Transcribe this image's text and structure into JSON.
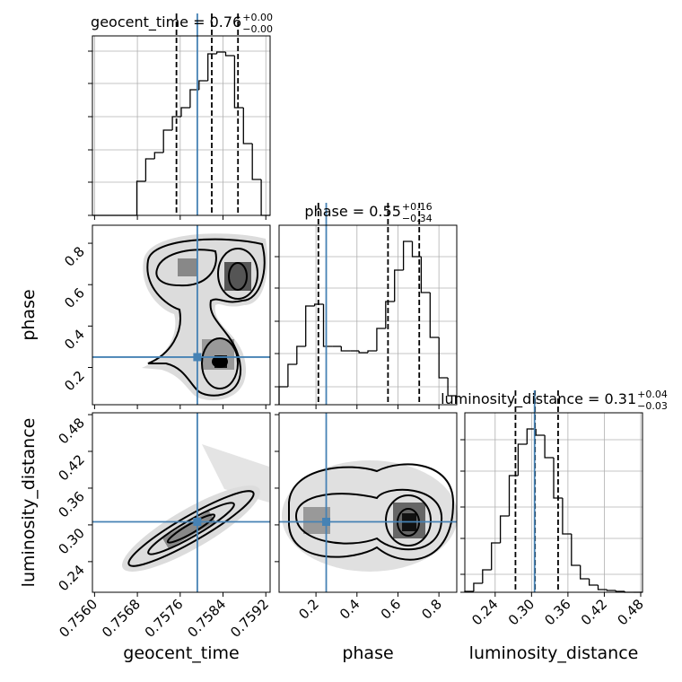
{
  "chart_data": [
    {
      "type": "histogram",
      "title": "geocent_time = 0.76",
      "title_sup": "+0.00",
      "title_sub": "−0.00",
      "bins": [
        0.75596,
        0.756126,
        0.756292,
        0.756458,
        0.756624,
        0.75679,
        0.756956,
        0.757122,
        0.757288,
        0.757454,
        0.75762,
        0.757786,
        0.757952,
        0.758118,
        0.758284,
        0.75845,
        0.758616,
        0.758782,
        0.758948,
        0.759114,
        0.75928
      ],
      "counts": [
        0,
        0,
        0,
        0,
        0,
        38,
        63,
        70,
        95,
        110,
        120,
        140,
        150,
        180,
        182,
        178,
        120,
        80,
        40,
        0
      ],
      "xlim": [
        0.75596,
        0.75928
      ],
      "xticks": [
        0.756,
        0.7568,
        0.7576,
        0.7584,
        0.7592
      ],
      "x_tick_labels": false,
      "ylim": [
        0,
        200
      ],
      "yticks": [
        0,
        37,
        73,
        110,
        147,
        183
      ],
      "y_tick_labels": false,
      "quantiles": [
        0.75753,
        0.75819,
        0.75868
      ],
      "truth": 0.75792,
      "grid": true,
      "color": "#000000",
      "truth_color": "#4682b4"
    },
    {
      "type": "density",
      "xlim": [
        0.75596,
        0.75928
      ],
      "xticks": [
        0.756,
        0.7568,
        0.7576,
        0.7584,
        0.7592
      ],
      "x_tick_labels": false,
      "ylim": [
        0.02,
        0.887
      ],
      "yticks": [
        0.2,
        0.4,
        0.6,
        0.8
      ],
      "y_tick_labels": true,
      "ylabel": "phase",
      "truth_x": 0.75792,
      "truth_y": 0.25,
      "truth_color": "#4682b4"
    },
    {
      "type": "histogram",
      "title": "phase = 0.55",
      "title_sup": "+0.16",
      "title_sub": "−0.34",
      "bins": [
        0.02,
        0.06335,
        0.1067,
        0.15005,
        0.1934,
        0.23675,
        0.2801,
        0.32345,
        0.3668,
        0.41015,
        0.4535,
        0.49685,
        0.5402,
        0.58355,
        0.6269,
        0.67025,
        0.7136,
        0.75695,
        0.8003,
        0.84365,
        0.887
      ],
      "counts": [
        20,
        45,
        65,
        110,
        112,
        65,
        65,
        60,
        60,
        58,
        60,
        85,
        115,
        150,
        182,
        165,
        125,
        75,
        30,
        10
      ],
      "xlim": [
        0.02,
        0.887
      ],
      "xticks": [
        0.2,
        0.4,
        0.6,
        0.8
      ],
      "x_tick_labels": false,
      "ylim": [
        0,
        200
      ],
      "yticks": [
        0,
        20,
        57,
        93,
        130,
        165
      ],
      "y_tick_labels": false,
      "quantiles": [
        0.2117,
        0.5515,
        0.704
      ],
      "truth": 0.25,
      "grid": true,
      "color": "#000000",
      "truth_color": "#4682b4"
    },
    {
      "type": "density",
      "xlim": [
        0.75596,
        0.75928
      ],
      "xticks": [
        {
          "value": 0.756,
          "label": "0.7560"
        },
        {
          "value": 0.7568,
          "label": "0.7568"
        },
        {
          "value": 0.7576,
          "label": "0.7576"
        },
        {
          "value": 0.7584,
          "label": "0.7584"
        },
        {
          "value": 0.7592,
          "label": "0.7592"
        }
      ],
      "x_tick_labels": true,
      "ylim": [
        0.19,
        0.483
      ],
      "yticks": [
        0.24,
        {
          "value": 0.3,
          "label": "0.30"
        },
        0.36,
        0.42,
        0.48
      ],
      "y_tick_labels": true,
      "xlabel": "geocent_time",
      "ylabel": "luminosity_distance",
      "truth_x": 0.75792,
      "truth_y": 0.305,
      "truth_color": "#4682b4"
    },
    {
      "type": "density",
      "xlim": [
        0.02,
        0.887
      ],
      "xticks": [
        0.2,
        0.4,
        0.6,
        0.8
      ],
      "x_tick_labels": true,
      "ylim": [
        0.19,
        0.483
      ],
      "yticks": [
        0.24,
        0.3,
        0.36,
        0.42,
        0.48
      ],
      "y_tick_labels": false,
      "xlabel": "phase",
      "truth_x": 0.25,
      "truth_y": 0.305,
      "truth_color": "#4682b4"
    },
    {
      "type": "histogram",
      "title": "luminosity_distance = 0.31",
      "title_sup": "+0.04",
      "title_sub": "−0.03",
      "bins": [
        0.19,
        0.20465,
        0.2193,
        0.23395,
        0.2486,
        0.26325,
        0.2779,
        0.29255,
        0.3072,
        0.32185,
        0.3365,
        0.35115,
        0.3658,
        0.38045,
        0.3951,
        0.40975,
        0.4244,
        0.43905,
        0.4537,
        0.46835,
        0.483
      ],
      "counts": [
        1,
        10,
        25,
        55,
        85,
        130,
        165,
        182,
        175,
        150,
        105,
        65,
        30,
        15,
        8,
        3,
        2,
        1,
        0,
        0
      ],
      "xlim": [
        0.19,
        0.483
      ],
      "xticks": [
        0.24,
        {
          "value": 0.3,
          "label": "0.30"
        },
        0.36,
        0.42,
        0.48
      ],
      "x_tick_labels": true,
      "ylim": [
        0,
        200
      ],
      "yticks": [
        0,
        20,
        60,
        95,
        135,
        170
      ],
      "y_tick_labels": false,
      "xlabel": "luminosity_distance",
      "quantiles": [
        0.2735,
        0.3057,
        0.3438
      ],
      "truth": 0.305,
      "grid": true,
      "color": "#000000",
      "truth_color": "#4682b4"
    }
  ]
}
